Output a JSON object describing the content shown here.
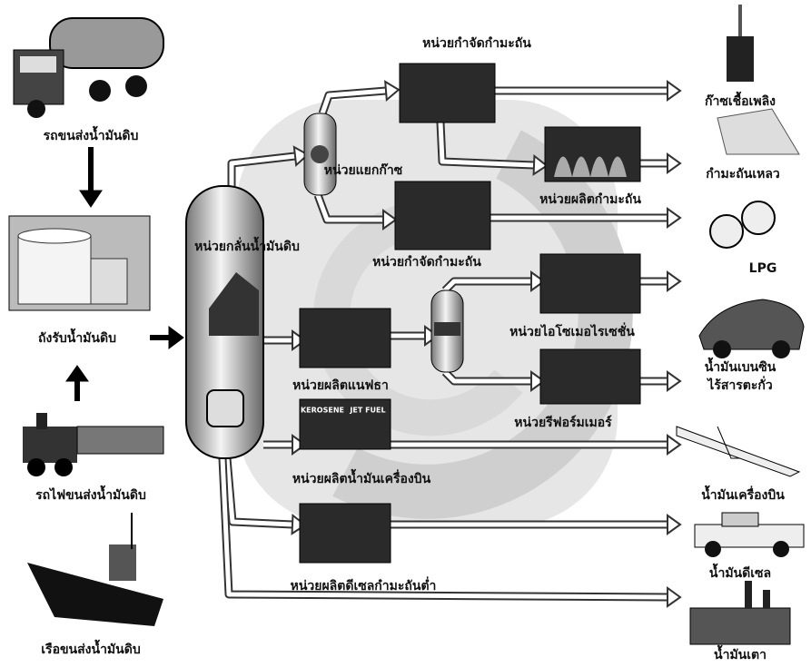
{
  "inputs": {
    "truck": "รถขนส่งน้ำมันดิบ",
    "tank": "ถังรับน้ำมันดิบ",
    "train": "รถไฟขนส่งน้ำมันดิบ",
    "ship": "เรือขนส่งน้ำมันดิบ"
  },
  "units": {
    "distillation": "หน่วยกลั่นน้ำมันดิบ",
    "desulfurization_1": "หน่วยกำจัดกำมะถัน",
    "gas_separation": "หน่วยแยกก๊าซ",
    "sulfur_production": "หน่วยผลิตกำมะถัน",
    "desulfurization_2": "หน่วยกำจัดกำมะถัน",
    "naphtha": "หน่วยผลิตแนฟธา",
    "isomerization": "หน่วยไอโซเมอไรเซชั่น",
    "reformer": "หน่วยรีฟอร์มเมอร์",
    "jet_fuel": "หน่วยผลิตน้ำมันเครื่องบิน",
    "jet_fuel_inset": [
      "KEROSENE",
      "JET FUEL"
    ],
    "low_sulfur_diesel": "หน่วยผลิตดีเซลกำมะถันต่ำ"
  },
  "products": {
    "fuel_gas": "ก๊าซเชื้อเพลิง",
    "liquid_sulfur": "กำมะถันเหลว",
    "lpg": "LPG",
    "gasoline": [
      "น้ำมันเบนซิน",
      "ไร้สารตะกั่ว"
    ],
    "jet_fuel": "น้ำมันเครื่องบิน",
    "diesel": "น้ำมันดีเซล",
    "fuel_oil": "น้ำมันเตา"
  }
}
